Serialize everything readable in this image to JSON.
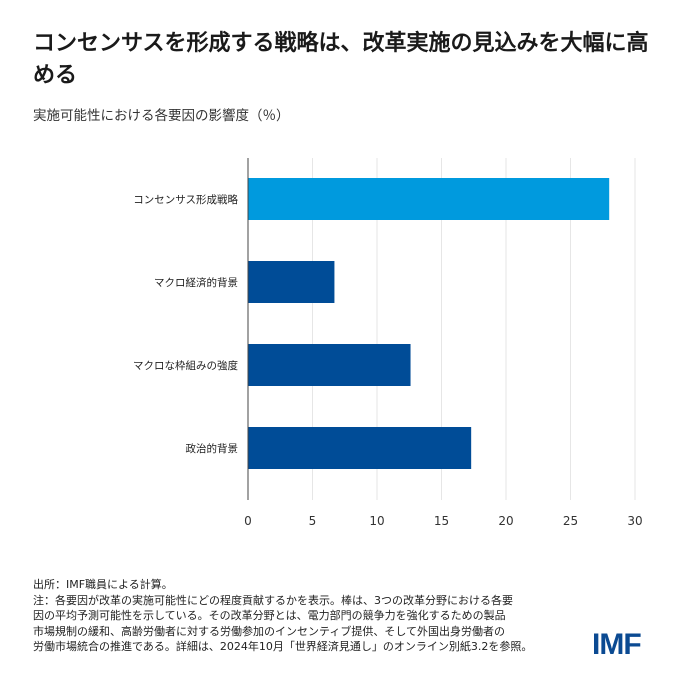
{
  "title": "コンセンサスを形成する戦略は、改革実施の見込みを大幅に高める",
  "subtitle": "実施可能性における各要因の影響度（％）",
  "chart_data": {
    "type": "bar",
    "orientation": "horizontal",
    "categories": [
      "コンセンサス形成戦略",
      "マクロ経済的背景",
      "マクロな枠組みの強度",
      "政治的背景"
    ],
    "values": [
      28.0,
      6.7,
      12.6,
      17.3
    ],
    "colors": [
      "#009ADE",
      "#004C97",
      "#004C97",
      "#004C97"
    ],
    "xlim": [
      0,
      30
    ],
    "xticks": [
      "0",
      "5",
      "10",
      "15",
      "20",
      "25",
      "30"
    ],
    "grid": true,
    "xlabel": "",
    "ylabel": ""
  },
  "notes": {
    "source": "出所：IMF職員による計算。",
    "note_lines": [
      "注：各要因が改革の実施可能性にどの程度貢献するかを表示。棒は、3つの改革分野における各要",
      "因の平均予測可能性を示している。その改革分野とは、電力部門の競争力を強化するための製品",
      "市場規制の緩和、高齢労働者に対する労働参加のインセンティブ提供、そして外国出身労働者の",
      "労働市場統合の推進である。詳細は、2024年10月「世界経済見通し」のオンライン別紙3.2を参照。"
    ]
  },
  "logo": "IMF"
}
